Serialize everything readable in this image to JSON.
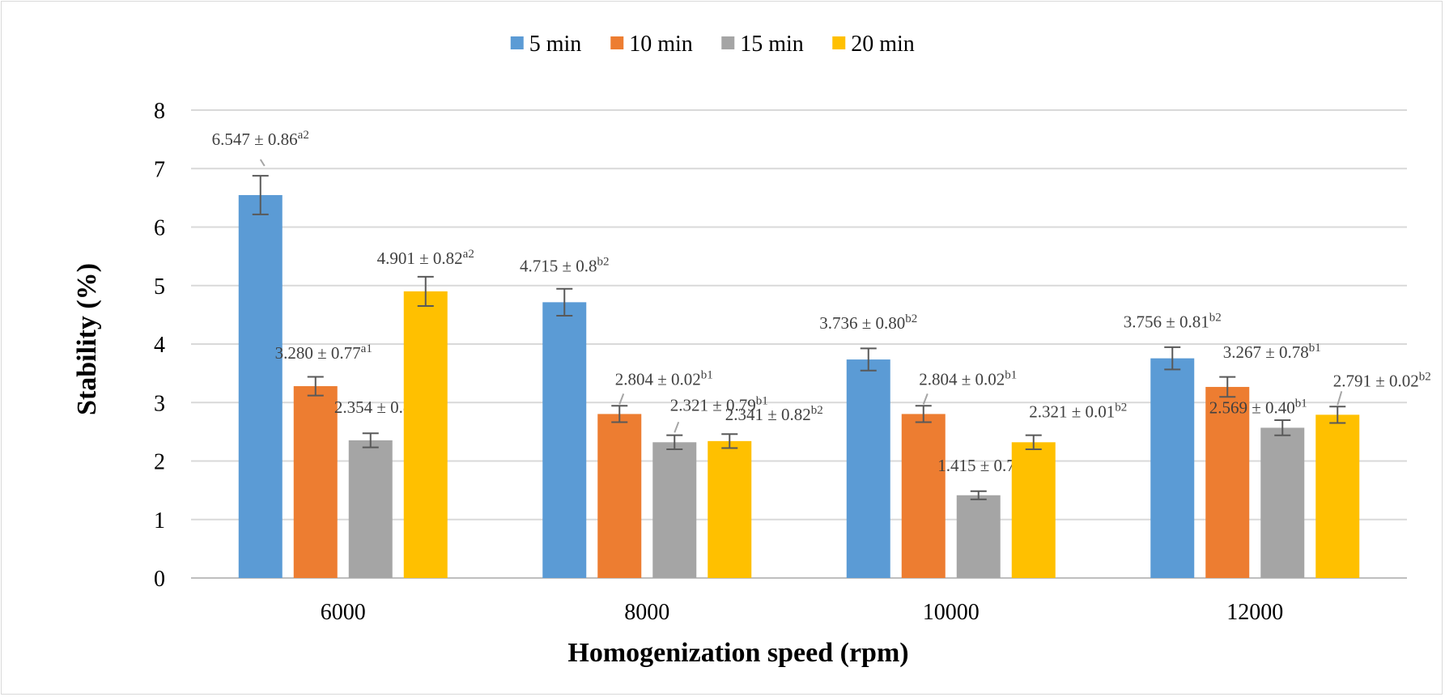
{
  "chart_data": {
    "type": "bar",
    "categories": [
      "6000",
      "8000",
      "10000",
      "12000"
    ],
    "xlabel": "Homogenization speed (rpm)",
    "ylabel": "Stability (%)",
    "ylim": [
      0,
      8
    ],
    "yticks": [
      "0",
      "1",
      "2",
      "3",
      "4",
      "5",
      "6",
      "7",
      "8"
    ],
    "grid": true,
    "legend_position": "top",
    "series": [
      {
        "name": "5 min",
        "color": "#5b9bd5",
        "values": [
          6.547,
          4.715,
          3.736,
          3.756
        ],
        "errors": [
          0.33,
          0.23,
          0.19,
          0.19
        ],
        "labels": [
          {
            "text": "6.547 ± 0.86",
            "sup": "a2"
          },
          {
            "text": "4.715 ± 0.8",
            "sup": "b2"
          },
          {
            "text": "3.736 ± 0.80",
            "sup": "b2"
          },
          {
            "text": "3.756 ± 0.81",
            "sup": "b2"
          }
        ]
      },
      {
        "name": "10 min",
        "color": "#ed7d31",
        "values": [
          3.28,
          2.804,
          2.804,
          3.267
        ],
        "errors": [
          0.16,
          0.14,
          0.14,
          0.17
        ],
        "labels": [
          {
            "text": "3.280 ± 0.77",
            "sup": "a1"
          },
          {
            "text": "2.804 ± 0.02",
            "sup": "b1"
          },
          {
            "text": "2.804 ± 0.02",
            "sup": "b1"
          },
          {
            "text": "3.267 ± 0.78",
            "sup": "b1"
          }
        ]
      },
      {
        "name": "15 min",
        "color": "#a5a5a5",
        "values": [
          2.354,
          2.321,
          1.415,
          2.569
        ],
        "errors": [
          0.12,
          0.12,
          0.07,
          0.13
        ],
        "labels": [
          {
            "text": "2.354 ± 0.8",
            "sup": "a1"
          },
          {
            "text": "2.321 ± 0.79",
            "sup": "b1"
          },
          {
            "text": "1.415 ± 0.79",
            "sup": "b1"
          },
          {
            "text": "2.569 ± 0.40",
            "sup": "b1"
          }
        ]
      },
      {
        "name": "20 min",
        "color": "#ffc000",
        "values": [
          4.901,
          2.341,
          2.321,
          2.791
        ],
        "errors": [
          0.25,
          0.12,
          0.12,
          0.14
        ],
        "labels": [
          {
            "text": "4.901 ± 0.82",
            "sup": "a2"
          },
          {
            "text": "2.341 ± 0.82",
            "sup": "b2"
          },
          {
            "text": "2.321 ± 0.01",
            "sup": "b2"
          },
          {
            "text": "2.791 ± 0.02",
            "sup": "b2"
          }
        ]
      }
    ]
  }
}
